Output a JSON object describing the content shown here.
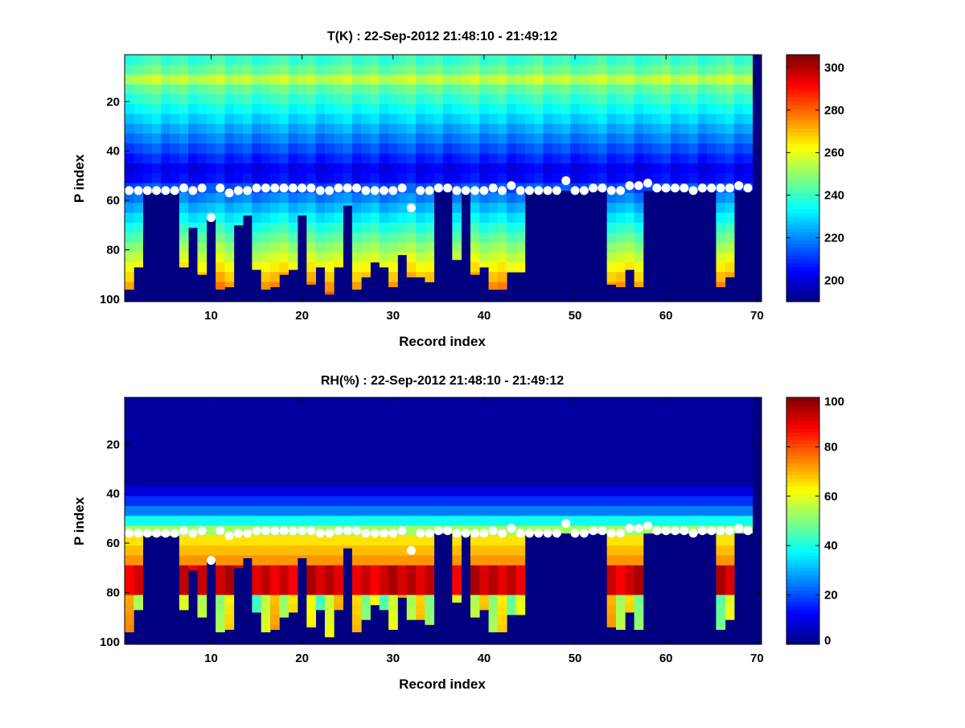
{
  "chart_data": [
    {
      "type": "heatmap",
      "title": "T(K) : 22-Sep-2012 21:48:10 - 21:49:12",
      "xlabel": "Record index",
      "ylabel": "P index",
      "xlim": [
        1,
        70
      ],
      "ylim": [
        1,
        101
      ],
      "y_reversed": true,
      "xticks": [
        10,
        20,
        30,
        40,
        50,
        60,
        70
      ],
      "yticks": [
        20,
        40,
        60,
        80,
        100
      ],
      "colormap": "jet",
      "clim": [
        190,
        306
      ],
      "colorbar_ticks": [
        200,
        220,
        240,
        260,
        280,
        300
      ],
      "colorbar_labels": [
        "200",
        "220",
        "240",
        "260",
        "280",
        "300"
      ],
      "field": "temperature",
      "markers_color": "#ffffff"
    },
    {
      "type": "heatmap",
      "title": "RH(%) : 22-Sep-2012 21:48:10 - 21:49:12",
      "xlabel": "Record index",
      "ylabel": "P index",
      "xlim": [
        1,
        70
      ],
      "ylim": [
        1,
        101
      ],
      "y_reversed": true,
      "xticks": [
        10,
        20,
        30,
        40,
        50,
        60,
        70
      ],
      "yticks": [
        20,
        40,
        60,
        80,
        100
      ],
      "colormap": "jet",
      "clim": [
        0,
        100
      ],
      "colorbar_ticks": [
        0,
        20,
        40,
        60,
        80,
        100
      ],
      "colorbar_labels": [
        "0",
        "20",
        "40",
        "60",
        "80",
        "100"
      ],
      "field": "humidity",
      "markers_color": "#ffffff"
    }
  ],
  "records": {
    "index": [
      1,
      2,
      3,
      4,
      5,
      6,
      7,
      8,
      9,
      10,
      11,
      12,
      13,
      14,
      15,
      16,
      17,
      18,
      19,
      20,
      21,
      22,
      23,
      24,
      25,
      26,
      27,
      28,
      29,
      30,
      31,
      32,
      33,
      34,
      35,
      36,
      37,
      38,
      39,
      40,
      41,
      42,
      43,
      44,
      45,
      46,
      47,
      48,
      49,
      50,
      51,
      52,
      53,
      54,
      55,
      56,
      57,
      58,
      59,
      60,
      61,
      62,
      63,
      64,
      65,
      66,
      67,
      68,
      69
    ],
    "marker_p": [
      56,
      56,
      56,
      56,
      56,
      56,
      55,
      56,
      55,
      67,
      55,
      57,
      56,
      56,
      55,
      55,
      55,
      55,
      55,
      55,
      55,
      56,
      56,
      55,
      55,
      55,
      56,
      56,
      56,
      56,
      55,
      63,
      56,
      56,
      55,
      55,
      56,
      56,
      56,
      56,
      55,
      56,
      54,
      56,
      56,
      56,
      56,
      56,
      52,
      56,
      56,
      55,
      55,
      56,
      56,
      54,
      54,
      53,
      55,
      55,
      55,
      55,
      56,
      55,
      55,
      55,
      55,
      54,
      55
    ],
    "surface_p": [
      96,
      87,
      57,
      57,
      57,
      57,
      87,
      71,
      90,
      67,
      96,
      95,
      70,
      66,
      88,
      96,
      95,
      90,
      88,
      66,
      94,
      87,
      98,
      87,
      62,
      96,
      91,
      85,
      87,
      95,
      82,
      91,
      91,
      93,
      56,
      56,
      84,
      56,
      90,
      87,
      96,
      96,
      89,
      89,
      56,
      56,
      56,
      56,
      56,
      56,
      56,
      56,
      56,
      94,
      95,
      88,
      95,
      56,
      56,
      56,
      56,
      56,
      56,
      56,
      56,
      95,
      91,
      56,
      56
    ]
  }
}
